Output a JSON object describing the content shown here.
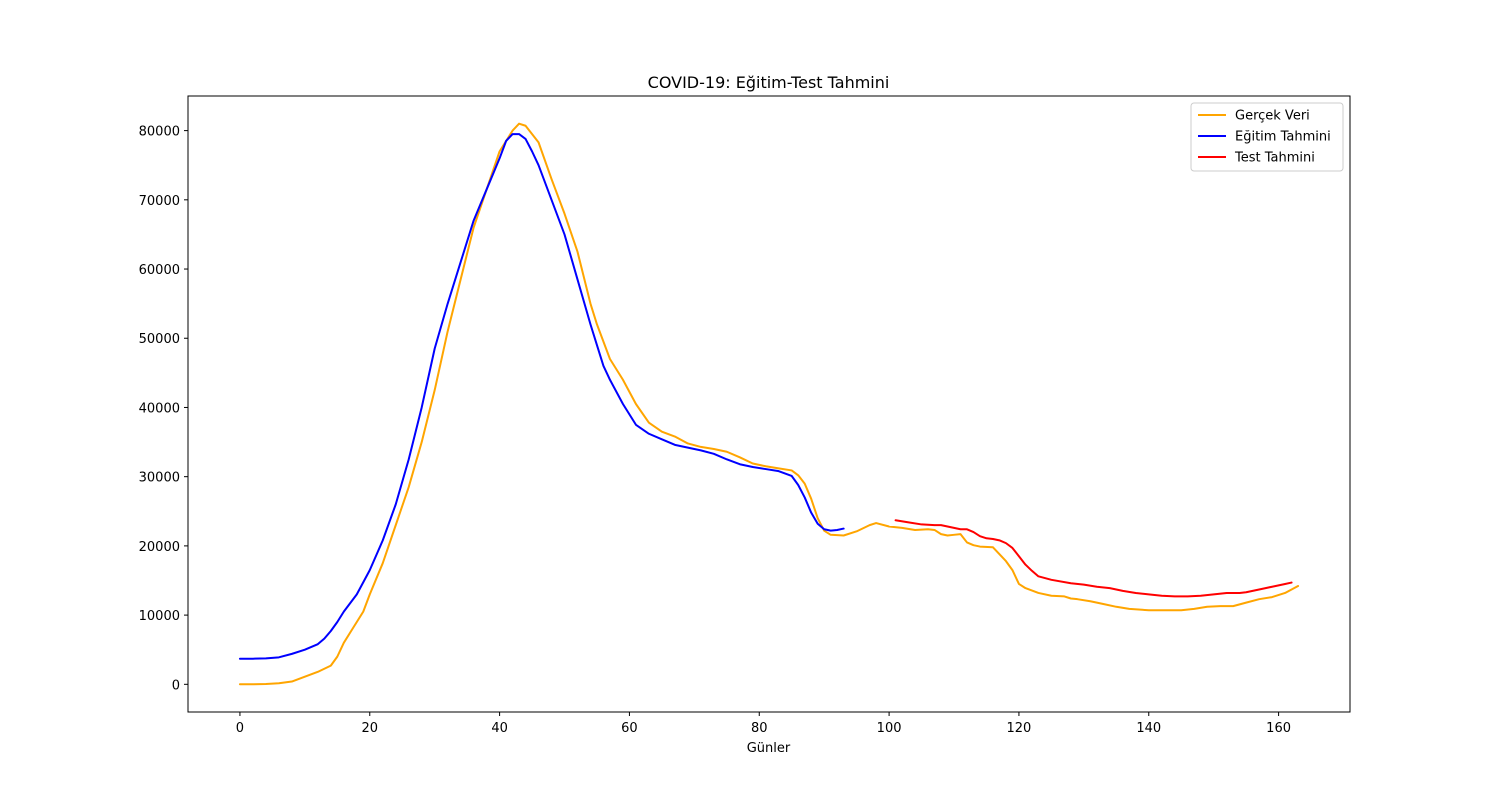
{
  "chart_data": {
    "type": "line",
    "title": "COVID-19: Eğitim-Test Tahmini",
    "xlabel": "Günler",
    "ylabel": "",
    "xlim": [
      -8,
      171
    ],
    "ylim": [
      -4000,
      85000
    ],
    "xticks": [
      0,
      20,
      40,
      60,
      80,
      100,
      120,
      140,
      160
    ],
    "yticks": [
      0,
      10000,
      20000,
      30000,
      40000,
      50000,
      60000,
      70000,
      80000
    ],
    "grid": false,
    "legend_position": "top-right",
    "series": [
      {
        "name": "Gerçek Veri",
        "color": "#FFA500",
        "x": [
          0,
          2,
          4,
          6,
          8,
          10,
          12,
          14,
          15,
          16,
          17,
          18,
          19,
          20,
          22,
          24,
          26,
          28,
          30,
          32,
          34,
          36,
          38,
          40,
          42,
          43,
          44,
          46,
          48,
          50,
          52,
          54,
          55,
          57,
          59,
          61,
          63,
          65,
          67,
          69,
          71,
          73,
          75,
          77,
          79,
          81,
          83,
          85,
          86,
          87,
          88,
          89,
          90,
          91,
          93,
          95,
          97,
          98,
          100,
          102,
          104,
          106,
          107,
          108,
          109,
          110,
          111,
          112,
          113,
          114,
          116,
          118,
          119,
          120,
          121,
          123,
          125,
          127,
          128,
          129,
          131,
          132,
          133,
          135,
          137,
          140,
          143,
          145,
          147,
          149,
          151,
          153,
          155,
          157,
          159,
          161,
          163
        ],
        "y": [
          0,
          0,
          50,
          150,
          400,
          1100,
          1800,
          2700,
          4000,
          6000,
          7500,
          9000,
          10500,
          13000,
          17500,
          23000,
          28500,
          35000,
          42500,
          51000,
          58500,
          66000,
          71500,
          77000,
          80000,
          81000,
          80700,
          78300,
          73000,
          68000,
          62500,
          55000,
          52000,
          47000,
          44000,
          40500,
          37800,
          36500,
          35800,
          34800,
          34300,
          34000,
          33600,
          32800,
          31900,
          31500,
          31200,
          30900,
          30200,
          29000,
          26800,
          24000,
          22200,
          21600,
          21500,
          22100,
          23000,
          23300,
          22800,
          22600,
          22300,
          22400,
          22300,
          21700,
          21500,
          21600,
          21700,
          20500,
          20100,
          19900,
          19800,
          17800,
          16500,
          14500,
          13900,
          13200,
          12800,
          12700,
          12400,
          12300,
          12000,
          11800,
          11600,
          11200,
          10900,
          10700,
          10700,
          10700,
          10900,
          11200,
          11300,
          11300,
          11800,
          12300,
          12600,
          13200,
          14200
        ]
      },
      {
        "name": "Eğitim Tahmini",
        "color": "#0000FF",
        "x": [
          0,
          2,
          4,
          6,
          8,
          10,
          12,
          13,
          14,
          15,
          16,
          18,
          20,
          22,
          24,
          26,
          28,
          30,
          32,
          34,
          36,
          38,
          40,
          41,
          42,
          43,
          44,
          45,
          46,
          48,
          50,
          52,
          54,
          55,
          56,
          57,
          59,
          61,
          63,
          65,
          67,
          69,
          71,
          73,
          75,
          77,
          79,
          81,
          83,
          85,
          86,
          87,
          88,
          89,
          90,
          91,
          92,
          93
        ],
        "y": [
          3700,
          3700,
          3750,
          3900,
          4400,
          5000,
          5800,
          6600,
          7700,
          9000,
          10500,
          13000,
          16500,
          20800,
          26000,
          32500,
          40000,
          48500,
          55000,
          61000,
          67000,
          71500,
          76000,
          78500,
          79500,
          79500,
          78800,
          77000,
          75000,
          70000,
          65000,
          58500,
          52000,
          49000,
          46000,
          44000,
          40500,
          37500,
          36200,
          35400,
          34600,
          34200,
          33800,
          33300,
          32500,
          31800,
          31400,
          31100,
          30800,
          30100,
          28800,
          27000,
          24800,
          23200,
          22400,
          22200,
          22300,
          22500
        ]
      },
      {
        "name": "Test Tahmini",
        "color": "#FF0000",
        "x": [
          101,
          103,
          105,
          107,
          108,
          109,
          111,
          112,
          113,
          114,
          115,
          116,
          117,
          118,
          119,
          120,
          121,
          122,
          123,
          125,
          128,
          130,
          132,
          134,
          136,
          138,
          140,
          142,
          144,
          146,
          148,
          150,
          152,
          154,
          155,
          156,
          157,
          158,
          159,
          160,
          161,
          162
        ],
        "y": [
          23700,
          23400,
          23100,
          23000,
          23000,
          22800,
          22400,
          22400,
          22000,
          21400,
          21100,
          21000,
          20800,
          20400,
          19700,
          18500,
          17300,
          16400,
          15600,
          15100,
          14600,
          14400,
          14100,
          13900,
          13500,
          13200,
          13000,
          12800,
          12700,
          12700,
          12800,
          13000,
          13200,
          13200,
          13300,
          13500,
          13700,
          13900,
          14100,
          14300,
          14500,
          14700
        ]
      }
    ]
  }
}
